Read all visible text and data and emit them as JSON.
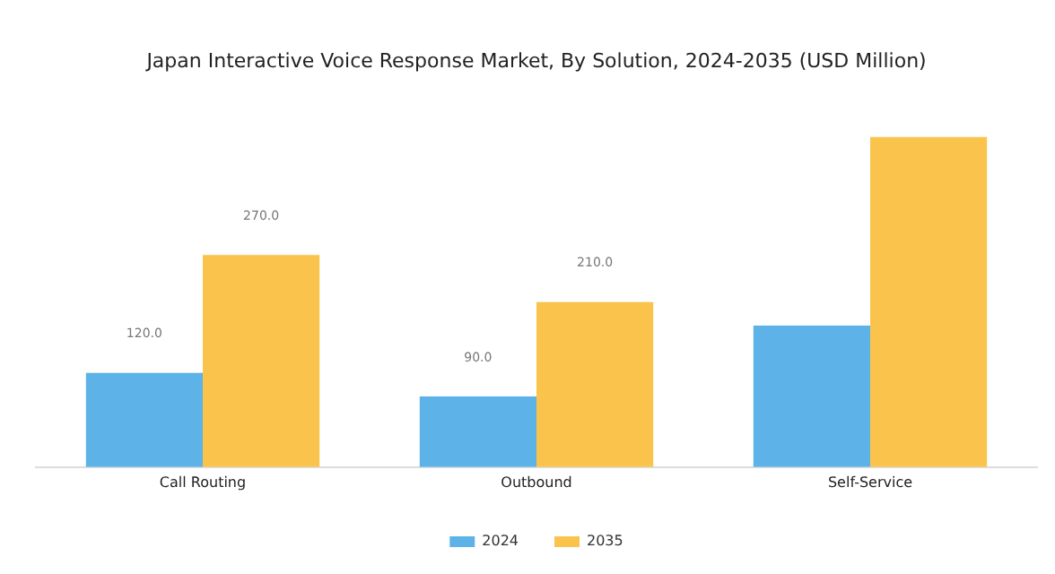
{
  "chart_data": {
    "type": "bar",
    "title": "Japan Interactive Voice Response Market, By Solution, 2024-2035 (USD Million)",
    "categories": [
      "Call Routing",
      "Outbound",
      "Self-Service"
    ],
    "series": [
      {
        "name": "2024",
        "color": "#5db3e8",
        "values": [
          120,
          90,
          180
        ],
        "value_labels": [
          "120.0",
          "90.0",
          null
        ]
      },
      {
        "name": "2035",
        "color": "#fac44c",
        "values": [
          270,
          210,
          420
        ],
        "value_labels": [
          "270.0",
          "210.0",
          null
        ]
      }
    ],
    "legend": "bottom",
    "grid": false
  }
}
